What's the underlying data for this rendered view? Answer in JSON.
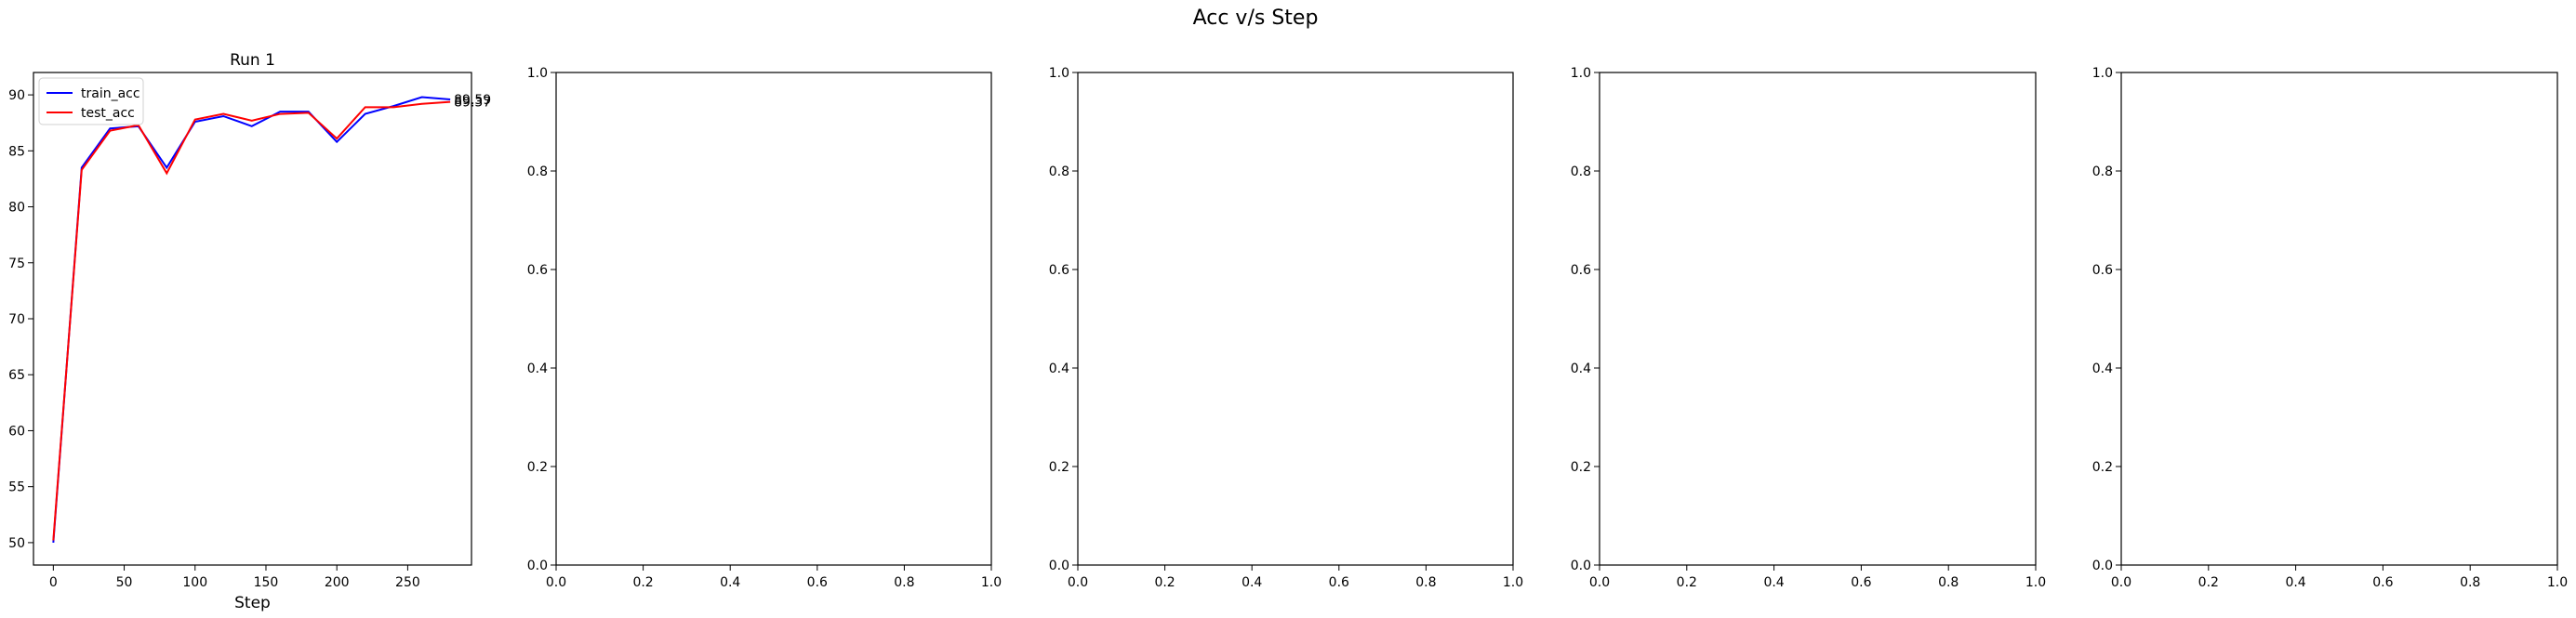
{
  "figure": {
    "title": "Acc v/s Step"
  },
  "colors": {
    "train": "#0000ff",
    "test": "#ff0000"
  },
  "chart_data": [
    {
      "type": "line",
      "title": "Run 1",
      "xlabel": "Step",
      "ylabel": "",
      "xlim": [
        -14,
        295
      ],
      "ylim": [
        48.0,
        92.0
      ],
      "xticks": [
        0,
        50,
        100,
        150,
        200,
        250
      ],
      "yticks": [
        50,
        55,
        60,
        65,
        70,
        75,
        80,
        85,
        90
      ],
      "x": [
        0,
        20,
        40,
        60,
        80,
        100,
        120,
        140,
        160,
        180,
        200,
        220,
        240,
        260,
        280
      ],
      "series": [
        {
          "name": "train_acc",
          "color": "#0000ff",
          "values": [
            50.0,
            83.5,
            87.0,
            87.2,
            83.5,
            87.6,
            88.1,
            87.2,
            88.5,
            88.5,
            85.8,
            88.3,
            89.0,
            89.8,
            89.59
          ]
        },
        {
          "name": "test_acc",
          "color": "#ff0000",
          "values": [
            50.2,
            83.3,
            86.8,
            87.3,
            83.0,
            87.8,
            88.3,
            87.7,
            88.3,
            88.4,
            86.1,
            88.9,
            88.9,
            89.2,
            89.37
          ]
        }
      ],
      "end_labels": [
        "89.59",
        "89.37"
      ],
      "legend": "upper-left",
      "grid": false
    },
    {
      "type": "line",
      "title": "",
      "xlabel": "",
      "ylabel": "",
      "xlim": [
        0,
        1
      ],
      "ylim": [
        0,
        1
      ],
      "xticks": [
        0.0,
        0.2,
        0.4,
        0.6,
        0.8,
        1.0
      ],
      "yticks": [
        0.0,
        0.2,
        0.4,
        0.6,
        0.8,
        1.0
      ],
      "series": [],
      "grid": false
    },
    {
      "type": "line",
      "title": "",
      "xlabel": "",
      "ylabel": "",
      "xlim": [
        0,
        1
      ],
      "ylim": [
        0,
        1
      ],
      "xticks": [
        0.0,
        0.2,
        0.4,
        0.6,
        0.8,
        1.0
      ],
      "yticks": [
        0.0,
        0.2,
        0.4,
        0.6,
        0.8,
        1.0
      ],
      "series": [],
      "grid": false
    },
    {
      "type": "line",
      "title": "",
      "xlabel": "",
      "ylabel": "",
      "xlim": [
        0,
        1
      ],
      "ylim": [
        0,
        1
      ],
      "xticks": [
        0.0,
        0.2,
        0.4,
        0.6,
        0.8,
        1.0
      ],
      "yticks": [
        0.0,
        0.2,
        0.4,
        0.6,
        0.8,
        1.0
      ],
      "series": [],
      "grid": false
    },
    {
      "type": "line",
      "title": "",
      "xlabel": "",
      "ylabel": "",
      "xlim": [
        0,
        1
      ],
      "ylim": [
        0,
        1
      ],
      "xticks": [
        0.0,
        0.2,
        0.4,
        0.6,
        0.8,
        1.0
      ],
      "yticks": [
        0.0,
        0.2,
        0.4,
        0.6,
        0.8,
        1.0
      ],
      "series": [],
      "grid": false
    }
  ]
}
